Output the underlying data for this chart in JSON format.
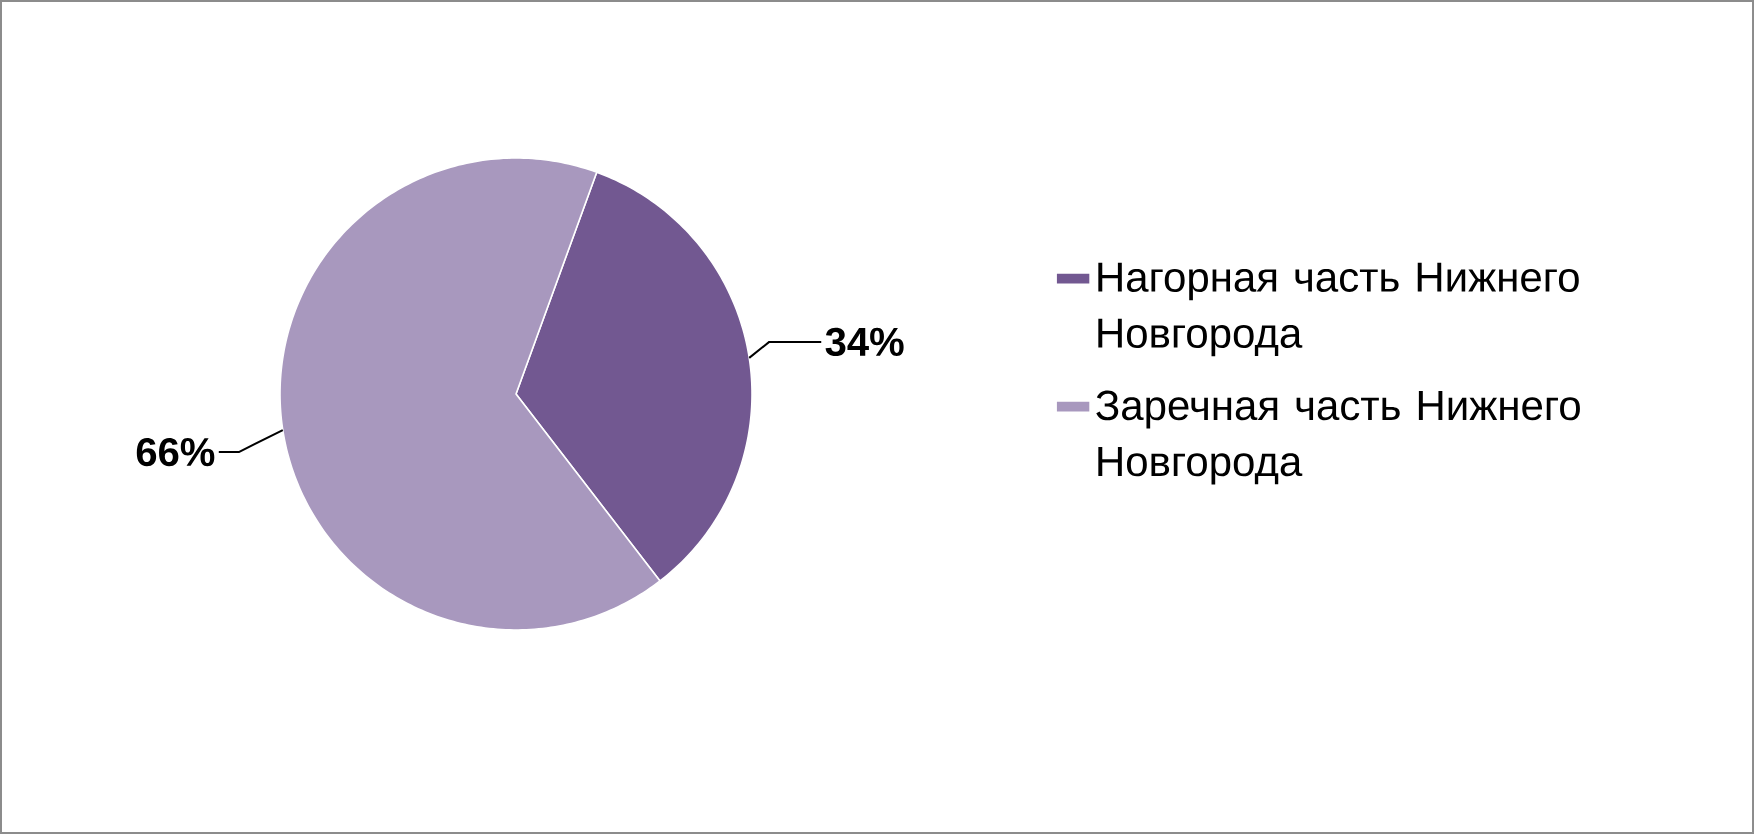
{
  "chart_data": {
    "type": "pie",
    "categories": [
      "Нагорная часть Нижнего Новгорода",
      "Заречная часть Нижнего Новгорода"
    ],
    "values": [
      34,
      66
    ],
    "colors": [
      "#725891",
      "#a898be"
    ],
    "value_labels": [
      "34%",
      "66%"
    ],
    "legend": "right"
  }
}
